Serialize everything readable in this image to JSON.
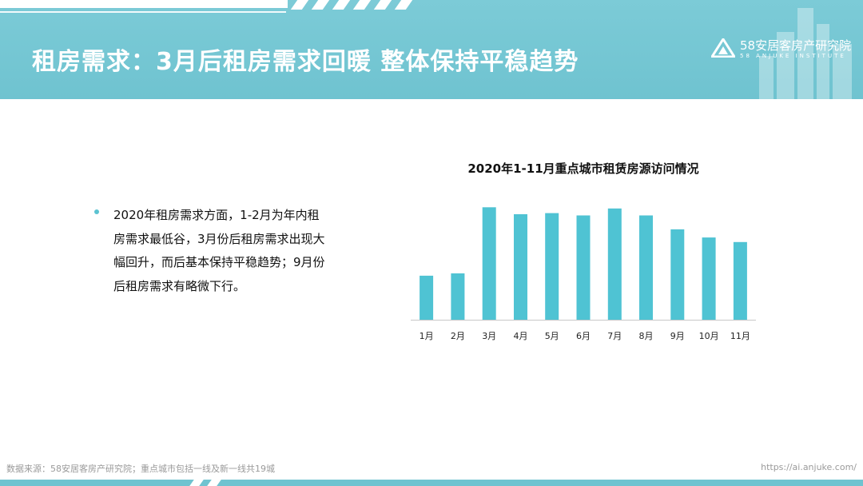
{
  "page": {
    "title": "租房需求：3月后租房需求回暖 整体保持平稳趋势",
    "logo": {
      "name_cn": "58安居客房产研究院",
      "name_en": "58 ANJUKE INSTITUTE",
      "icon": "triangle-a-logo-icon"
    },
    "bullet_text": "2020年租房需求方面，1-2月为年内租房需求最低谷，3月份后租房需求出现大幅回升，而后基本保持平稳趋势；9月份后租房需求有略微下行。",
    "footer": {
      "source": "数据来源：58安居客房产研究院；重点城市包括一线及新一线共19城",
      "url": "https://ai.anjuke.com/"
    }
  },
  "colors": {
    "header": "#6fc3d0",
    "bar": "#4fc3d3",
    "bullet": "#5bc3d1",
    "axis": "#c8c8c8"
  },
  "chart_data": {
    "type": "bar",
    "title": "2020年1-11月重点城市租赁房源访问情况",
    "categories": [
      "1月",
      "2月",
      "3月",
      "4月",
      "5月",
      "6月",
      "7月",
      "8月",
      "9月",
      "10月",
      "11月"
    ],
    "values": [
      38,
      40,
      97,
      91,
      92,
      90,
      96,
      90,
      78,
      71,
      67
    ],
    "xlabel": "",
    "ylabel": "",
    "ylim": [
      0,
      100
    ],
    "grid": false,
    "legend": "none",
    "y_axis_visible": false
  }
}
